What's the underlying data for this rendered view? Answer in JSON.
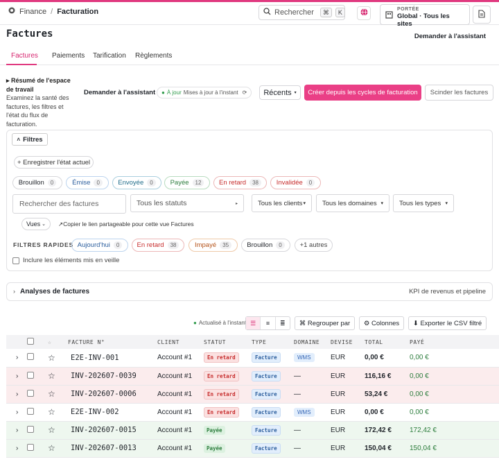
{
  "breadcrumb": {
    "root": "Finance",
    "separator": "/",
    "current": "Facturation"
  },
  "search": {
    "label": "Rechercher",
    "kbd1": "⌘",
    "kbd2": "K"
  },
  "scope": {
    "label": "PORTÉE",
    "value": "Global · Tous les sites"
  },
  "page": {
    "title": "Factures",
    "ask_assistant": "Demander à l'assistant"
  },
  "tabs": [
    {
      "label": "Factures"
    },
    {
      "label": "Paiements"
    },
    {
      "label": "Tarification"
    },
    {
      "label": "Règlements"
    }
  ],
  "workspace": {
    "title": "Résumé de l'espace de travail",
    "description": "Examinez la santé des factures, les filtres et l'état du flux de facturation.",
    "ask": "Demander à l'assistant",
    "status_live": "À jour",
    "status_updated": "Mises à jour à l'instant",
    "recent": "Récents",
    "create": "Créer depuis les cycles de facturation",
    "split": "Scinder les factures"
  },
  "filters": {
    "toggle": "Filtres",
    "save_state": "+ Enregistrer l'état actuel",
    "status_chips": [
      {
        "label": "Brouillon",
        "count": "0"
      },
      {
        "label": "Émise",
        "count": "0"
      },
      {
        "label": "Envoyée",
        "count": "0"
      },
      {
        "label": "Payée",
        "count": "12"
      },
      {
        "label": "En retard",
        "count": "38"
      },
      {
        "label": "Invalidée",
        "count": "0"
      }
    ],
    "search_placeholder": "Rechercher des factures",
    "status_select": "Tous les statuts",
    "clients_select": "Tous les clients",
    "domains_select": "Tous les domaines",
    "types_select": "Tous les types",
    "views": "Vues",
    "copy_link": "↗Copier le lien partageable pour cette vue Factures",
    "quick_label": "FILTRES RAPIDES",
    "quick": [
      {
        "label": "Aujourd'hui",
        "count": "0"
      },
      {
        "label": "En retard",
        "count": "38"
      },
      {
        "label": "Impayé",
        "count": "35"
      },
      {
        "label": "Brouillon",
        "count": "0"
      }
    ],
    "more": "+1 autres",
    "snoozed": "Inclure les éléments mis en veille"
  },
  "analyses": {
    "title": "Analyses de factures",
    "subtitle": "KPI de revenus et pipeline"
  },
  "toolbar": {
    "updated": "Actualisé à l'instant",
    "group": "⌘ Regrouper par",
    "columns": "⚙ Colonnes",
    "export": "⬇ Exporter le CSV filtré"
  },
  "table": {
    "headers": {
      "invoice": "FACTURE N°",
      "client": "CLIENT",
      "status": "STATUT",
      "type": "TYPE",
      "domain": "DOMAINE",
      "currency": "DEVISE",
      "total": "TOTAL",
      "paid": "PAYÉ"
    },
    "rows": [
      {
        "id": "E2E-INV-001",
        "client": "Account #1",
        "status": "En retard",
        "type": "Facture",
        "domain": "WMS",
        "currency": "EUR",
        "total": "0,00 €",
        "paid": "0,00 €"
      },
      {
        "id": "INV-202607-0039",
        "client": "Account #1",
        "status": "En retard",
        "type": "Facture",
        "domain": "—",
        "currency": "EUR",
        "total": "116,16 €",
        "paid": "0,00 €"
      },
      {
        "id": "INV-202607-0006",
        "client": "Account #1",
        "status": "En retard",
        "type": "Facture",
        "domain": "—",
        "currency": "EUR",
        "total": "53,24 €",
        "paid": "0,00 €"
      },
      {
        "id": "E2E-INV-002",
        "client": "Account #1",
        "status": "En retard",
        "type": "Facture",
        "domain": "WMS",
        "currency": "EUR",
        "total": "0,00 €",
        "paid": "0,00 €"
      },
      {
        "id": "INV-202607-0015",
        "client": "Account #1",
        "status": "Payée",
        "type": "Facture",
        "domain": "—",
        "currency": "EUR",
        "total": "172,42 €",
        "paid": "172,42 €"
      },
      {
        "id": "INV-202607-0013",
        "client": "Account #1",
        "status": "Payée",
        "type": "Facture",
        "domain": "—",
        "currency": "EUR",
        "total": "150,04 €",
        "paid": "150,04 €"
      }
    ]
  },
  "colors": {
    "accent": "#ea3f86",
    "late_row": "#fbeced",
    "paid_row": "#eef7ef"
  }
}
